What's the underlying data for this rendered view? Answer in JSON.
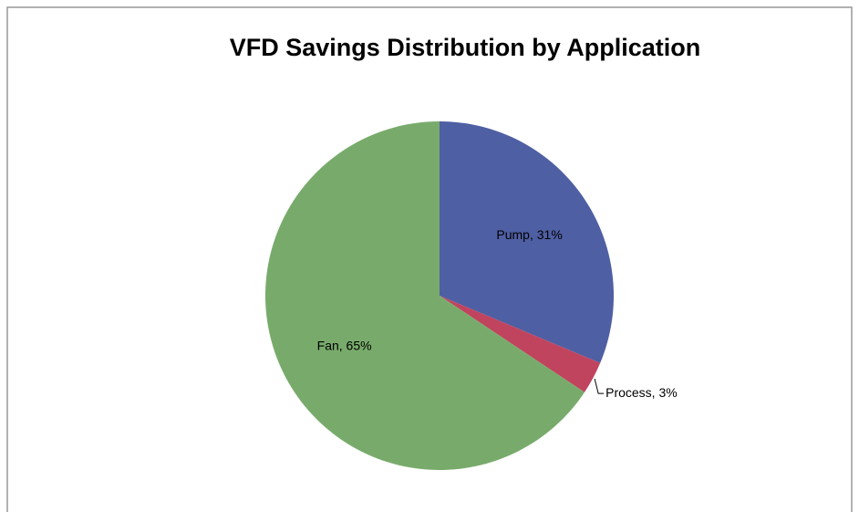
{
  "chart_data": {
    "type": "pie",
    "title": "VFD Savings Distribution by Application",
    "values": [
      31,
      3,
      65
    ],
    "value_labels": [
      "Pump, 31%",
      "Process, 3%",
      "Fan, 65%"
    ],
    "colors": [
      "#4f5fa3",
      "#c0445e",
      "#78ab6b"
    ]
  }
}
